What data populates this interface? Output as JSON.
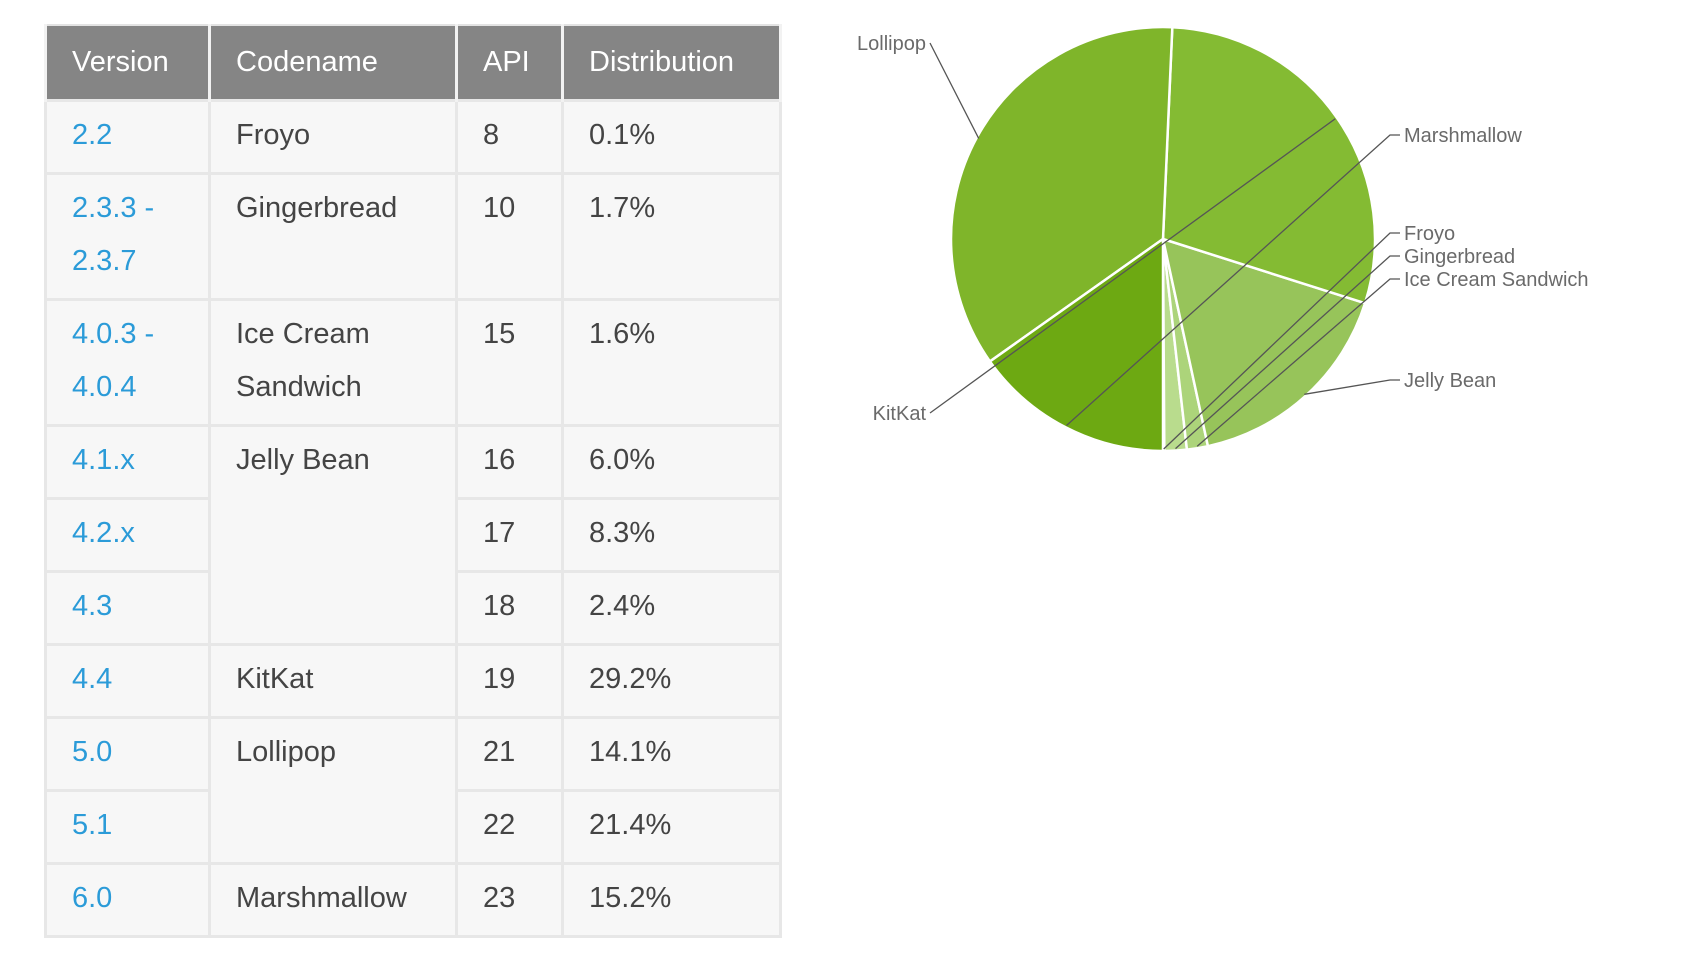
{
  "table": {
    "headers": [
      "Version",
      "Codename",
      "API",
      "Distribution"
    ],
    "rows": [
      {
        "version": [
          "2.2"
        ],
        "codename": [
          "Froyo"
        ],
        "codename_rowspan": 1,
        "api": "8",
        "distribution": "0.1%"
      },
      {
        "version": [
          "2.3.3 -",
          "2.3.7"
        ],
        "codename": [
          "Gingerbread"
        ],
        "codename_rowspan": 1,
        "api": "10",
        "distribution": "1.7%"
      },
      {
        "version": [
          "4.0.3 -",
          "4.0.4"
        ],
        "codename": [
          "Ice Cream",
          "Sandwich"
        ],
        "codename_rowspan": 1,
        "api": "15",
        "distribution": "1.6%"
      },
      {
        "version": [
          "4.1.x"
        ],
        "codename": [
          "Jelly Bean"
        ],
        "codename_rowspan": 3,
        "api": "16",
        "distribution": "6.0%"
      },
      {
        "version": [
          "4.2.x"
        ],
        "codename": null,
        "codename_rowspan": 0,
        "api": "17",
        "distribution": "8.3%"
      },
      {
        "version": [
          "4.3"
        ],
        "codename": null,
        "codename_rowspan": 0,
        "api": "18",
        "distribution": "2.4%"
      },
      {
        "version": [
          "4.4"
        ],
        "codename": [
          "KitKat"
        ],
        "codename_rowspan": 1,
        "api": "19",
        "distribution": "29.2%"
      },
      {
        "version": [
          "5.0"
        ],
        "codename": [
          "Lollipop"
        ],
        "codename_rowspan": 2,
        "api": "21",
        "distribution": "14.1%"
      },
      {
        "version": [
          "5.1"
        ],
        "codename": null,
        "codename_rowspan": 0,
        "api": "22",
        "distribution": "21.4%"
      },
      {
        "version": [
          "6.0"
        ],
        "codename": [
          "Marshmallow"
        ],
        "codename_rowspan": 1,
        "api": "23",
        "distribution": "15.2%"
      }
    ]
  },
  "chart_data": {
    "type": "pie",
    "start_angle_deg": 270,
    "direction": "counterclockwise",
    "slices": [
      {
        "label": "Froyo",
        "value": 0.1,
        "color": "#c5e3a0"
      },
      {
        "label": "Gingerbread",
        "value": 1.7,
        "color": "#b9dc8d"
      },
      {
        "label": "Ice Cream Sandwich",
        "value": 1.6,
        "color": "#acd47a"
      },
      {
        "label": "Jelly Bean",
        "value": 16.7,
        "color": "#97c45a"
      },
      {
        "label": "KitKat",
        "value": 29.2,
        "color": "#84bb33"
      },
      {
        "label": "Lollipop",
        "value": 35.5,
        "color": "#7fb52a"
      },
      {
        "label": "Marshmallow",
        "value": 15.2,
        "color": "#6da912"
      }
    ],
    "slice_separator_color": "#ffffff",
    "label_color": "#6a6a6a",
    "leader_line_color": "#555555"
  }
}
